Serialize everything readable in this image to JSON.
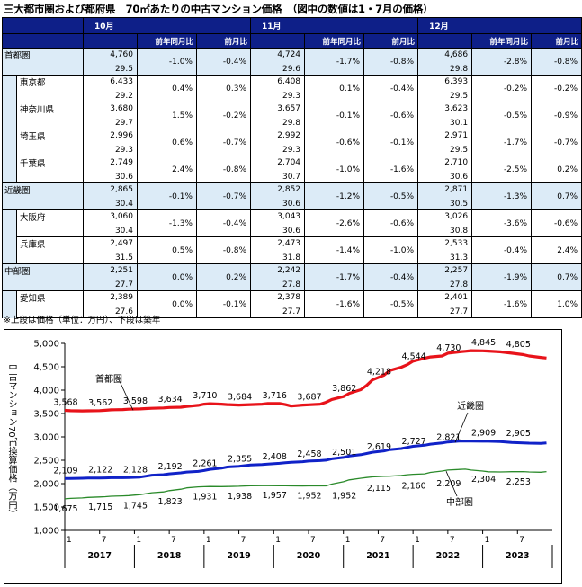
{
  "title": "三大都市圏および都府県　70㎡あたりの中古マンション価格　（図中の数値は1・7月の価格）",
  "table": {
    "months": [
      "10月",
      "11月",
      "12月"
    ],
    "col_yoy": "前年同月比",
    "col_mom": "前月比",
    "rows": [
      {
        "name": "首都圏",
        "region": true,
        "cells": [
          [
            "4,760",
            "29.5",
            "-1.0%",
            "-0.4%"
          ],
          [
            "4,724",
            "29.6",
            "-1.7%",
            "-0.8%"
          ],
          [
            "4,686",
            "29.8",
            "-2.8%",
            "-0.8%"
          ]
        ]
      },
      {
        "name": "東京都",
        "region": false,
        "cells": [
          [
            "6,433",
            "29.2",
            "0.4%",
            "0.3%"
          ],
          [
            "6,408",
            "29.3",
            "0.1%",
            "-0.4%"
          ],
          [
            "6,393",
            "29.5",
            "-0.2%",
            "-0.2%"
          ]
        ]
      },
      {
        "name": "神奈川県",
        "region": false,
        "cells": [
          [
            "3,680",
            "29.7",
            "1.5%",
            "-0.2%"
          ],
          [
            "3,657",
            "29.8",
            "-0.1%",
            "-0.6%"
          ],
          [
            "3,623",
            "30.1",
            "-0.5%",
            "-0.9%"
          ]
        ]
      },
      {
        "name": "埼玉県",
        "region": false,
        "cells": [
          [
            "2,996",
            "29.3",
            "0.6%",
            "-0.7%"
          ],
          [
            "2,992",
            "29.3",
            "-0.6%",
            "-0.1%"
          ],
          [
            "2,971",
            "29.5",
            "-1.7%",
            "-0.7%"
          ]
        ]
      },
      {
        "name": "千葉県",
        "region": false,
        "cells": [
          [
            "2,749",
            "30.6",
            "2.4%",
            "-0.8%"
          ],
          [
            "2,704",
            "30.7",
            "-1.0%",
            "-1.6%"
          ],
          [
            "2,710",
            "30.6",
            "-2.5%",
            "0.2%"
          ]
        ]
      },
      {
        "name": "近畿圏",
        "region": true,
        "cells": [
          [
            "2,865",
            "30.4",
            "-0.1%",
            "-0.7%"
          ],
          [
            "2,852",
            "30.6",
            "-1.2%",
            "-0.5%"
          ],
          [
            "2,871",
            "30.5",
            "-1.3%",
            "0.7%"
          ]
        ]
      },
      {
        "name": "大阪府",
        "region": false,
        "cells": [
          [
            "3,060",
            "30.4",
            "-1.3%",
            "-0.4%"
          ],
          [
            "3,043",
            "30.6",
            "-2.6%",
            "-0.6%"
          ],
          [
            "3,026",
            "30.8",
            "-3.6%",
            "-0.6%"
          ]
        ]
      },
      {
        "name": "兵庫県",
        "region": false,
        "cells": [
          [
            "2,497",
            "31.5",
            "0.5%",
            "-0.8%"
          ],
          [
            "2,473",
            "31.8",
            "-1.4%",
            "-1.0%"
          ],
          [
            "2,533",
            "31.3",
            "-0.4%",
            "2.4%"
          ]
        ]
      },
      {
        "name": "中部圏",
        "region": true,
        "cells": [
          [
            "2,251",
            "27.7",
            "0.0%",
            "0.2%"
          ],
          [
            "2,242",
            "27.8",
            "-1.7%",
            "-0.4%"
          ],
          [
            "2,257",
            "27.8",
            "-1.9%",
            "0.7%"
          ]
        ]
      },
      {
        "name": "愛知県",
        "region": false,
        "cells": [
          [
            "2,389",
            "27.6",
            "0.0%",
            "-0.1%"
          ],
          [
            "2,378",
            "27.7",
            "-1.6%",
            "-0.5%"
          ],
          [
            "2,401",
            "27.7",
            "-1.6%",
            "1.0%"
          ]
        ]
      }
    ]
  },
  "note": "※上段は価格（単位：万円）、下段は築年",
  "chart_data": {
    "type": "line",
    "ylabel": "中古マンション70㎡換算価格（万円）",
    "ylim": [
      1000,
      5000
    ],
    "yticks": [
      "1,000",
      "1,500",
      "2,000",
      "2,500",
      "3,000",
      "3,500",
      "4,000",
      "4,500",
      "5,000"
    ],
    "x_month_ticks": [
      "1",
      "7",
      "1",
      "7",
      "1",
      "7",
      "1",
      "7",
      "1",
      "7",
      "1",
      "7",
      "1",
      "7"
    ],
    "x_years": [
      "2017",
      "2018",
      "2019",
      "2020",
      "2021",
      "2022",
      "2023"
    ],
    "grid": false,
    "colors": {
      "首都圏": "#e8131a",
      "近畿圏": "#1022c8",
      "中部圏": "#2a8a2a"
    },
    "series": [
      {
        "name": "首都圏",
        "label_values": [
          3568,
          3562,
          3598,
          3634,
          3710,
          3684,
          3716,
          3687,
          3862,
          4218,
          4544,
          4730,
          4845,
          4805
        ],
        "labels": [
          "3,568",
          "3,562",
          "3,598",
          "3,634",
          "3,710",
          "3,684",
          "3,716",
          "3,687",
          "3,862",
          "4,218",
          "4,544",
          "4,730",
          "4,845",
          "4,805"
        ],
        "values": [
          3568,
          3560,
          3555,
          3558,
          3562,
          3570,
          3578,
          3585,
          3592,
          3598,
          3605,
          3612,
          3620,
          3628,
          3634,
          3650,
          3675,
          3700,
          3710,
          3700,
          3690,
          3680,
          3684,
          3690,
          3700,
          3715,
          3716,
          3690,
          3660,
          3680,
          3687,
          3700,
          3740,
          3800,
          3862,
          3930,
          4010,
          4100,
          4218,
          4320,
          4420,
          4490,
          4544,
          4620,
          4680,
          4710,
          4730,
          4790,
          4820,
          4830,
          4845,
          4840,
          4835,
          4820,
          4805,
          4790,
          4760,
          4730,
          4700,
          4686
        ]
      },
      {
        "name": "近畿圏",
        "label_values": [
          2109,
          2122,
          2128,
          2192,
          2261,
          2355,
          2408,
          2458,
          2501,
          2619,
          2727,
          2821,
          2909,
          2905
        ],
        "labels": [
          "2,109",
          "2,122",
          "2,128",
          "2,192",
          "2,261",
          "2,355",
          "2,408",
          "2,458",
          "2,501",
          "2,619",
          "2,727",
          "2,821",
          "2,909",
          "2,905"
        ],
        "values": [
          2109,
          2112,
          2116,
          2120,
          2122,
          2124,
          2126,
          2127,
          2128,
          2140,
          2160,
          2180,
          2192,
          2210,
          2230,
          2248,
          2261,
          2280,
          2305,
          2330,
          2355,
          2370,
          2385,
          2398,
          2408,
          2420,
          2435,
          2448,
          2458,
          2470,
          2482,
          2493,
          2501,
          2530,
          2560,
          2590,
          2619,
          2645,
          2672,
          2700,
          2727,
          2750,
          2775,
          2798,
          2821,
          2845,
          2870,
          2890,
          2909,
          2912,
          2908,
          2906,
          2905,
          2900,
          2890,
          2880,
          2871,
          2865,
          2860,
          2871
        ]
      },
      {
        "name": "中部圏",
        "label_values": [
          1675,
          1715,
          1745,
          1823,
          1931,
          1938,
          1957,
          1952,
          1952,
          2115,
          2160,
          2209,
          2304,
          2253
        ],
        "labels": [
          "1,675",
          "1,715",
          "1,745",
          "1,823",
          "1,931",
          "1,938",
          "1,957",
          "1,952",
          "1,952",
          "2,115",
          "2,160",
          "2,209",
          "2,304",
          "2,253"
        ],
        "values": [
          1675,
          1685,
          1695,
          1705,
          1715,
          1722,
          1730,
          1738,
          1745,
          1765,
          1785,
          1805,
          1823,
          1850,
          1880,
          1910,
          1931,
          1935,
          1938,
          1936,
          1938,
          1945,
          1950,
          1955,
          1957,
          1958,
          1955,
          1953,
          1952,
          1950,
          1951,
          1952,
          1952,
          1990,
          2040,
          2080,
          2115,
          2130,
          2145,
          2155,
          2160,
          2175,
          2190,
          2200,
          2209,
          2240,
          2270,
          2290,
          2304,
          2310,
          2290,
          2270,
          2253,
          2250,
          2252,
          2255,
          2257,
          2250,
          2245,
          2257
        ]
      }
    ]
  }
}
